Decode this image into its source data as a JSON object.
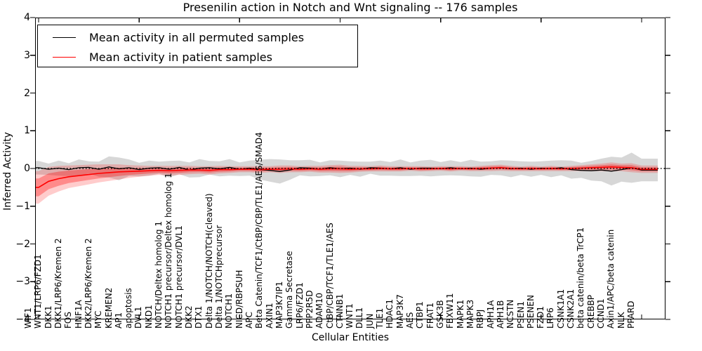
{
  "chart_data": {
    "type": "line",
    "title": "Presenilin action in Notch and Wnt signaling -- 176 samples",
    "xlabel": "Cellular Entities",
    "ylabel": "Inferred Activity",
    "ylim": [
      -4,
      4
    ],
    "yticks": [
      4,
      3,
      2,
      1,
      0,
      -1,
      -2,
      -3,
      -4
    ],
    "xtick_major_indices": [
      0,
      10,
      20,
      30,
      40,
      50,
      60
    ],
    "grid": false,
    "legend_position": "upper left",
    "zero_line": {
      "value": 0,
      "style": "dotted",
      "color": "#000000"
    },
    "categories": [
      "WIF1",
      "WNT1/LRP6/FZD1",
      "DKK1",
      "DKK1/LRP6/Kremen 2",
      "FOS",
      "HNF1A",
      "DKK2/LRP6/Kremen 2",
      "MYC",
      "KREMEN2",
      "AP1",
      "apoptosis",
      "DVL1",
      "NKD1",
      "NOTCH/Deltex homolog 1",
      "NOTCH1 precursor/Deltex homolog 1",
      "NOTCH1 precursor/DVL1",
      "DKK2",
      "DTX1",
      "Delta 1/NOTCH/NOTCH(cleaved)",
      "Delta 1/NOTCHprecursor",
      "NOTCH1",
      "NICD/RBPSUH",
      "APC",
      "Beta Catenin/TCF1/CtBP/CBP/TLE1/AES/SMAD4",
      "AXIN1",
      "MAP3K7IP1",
      "Gamma Secretase",
      "LRP6/FZD1",
      "PPP2R5D",
      "ADAM10",
      "CtBP/CBP/TCF1/TLE1/AES",
      "CTNNB1",
      "WNT1",
      "DLL1",
      "JUN",
      "TLE1",
      "HDAC1",
      "MAP3K7",
      "AES",
      "CTBP1",
      "FRAT1",
      "GSK3B",
      "FBXW11",
      "MAPK1",
      "MAPK3",
      "RBPJ",
      "APH1A",
      "APH1B",
      "NCSTN",
      "PSEN1",
      "PSENEN",
      "FZD1",
      "LRP6",
      "CSNK1A1",
      "CSNK2A1",
      "beta catenin/beta TrCP1",
      "CREBBP",
      "CCND1",
      "Axin1/APC/beta catenin",
      "NLK",
      "PPARD"
    ],
    "series": [
      {
        "name": "Mean activity in all permuted samples",
        "color": "#000000",
        "band_color": "rgba(130,130,130,0.32)",
        "values": [
          0.02,
          -0.02,
          0.01,
          -0.03,
          0.02,
          0.03,
          -0.02,
          0.04,
          -0.01,
          0.02,
          -0.03,
          0.01,
          0.02,
          -0.02,
          0.03,
          -0.04,
          0.01,
          0.02,
          -0.01,
          0.03,
          -0.02,
          0.01,
          -0.03,
          -0.05,
          -0.08,
          -0.04,
          0.02,
          0.01,
          -0.02,
          0.02,
          -0.01,
          0.01,
          -0.02,
          0.02,
          0.01,
          -0.01,
          0.02,
          -0.02,
          0.01,
          0.01,
          -0.01,
          0.02,
          -0.01,
          0.01,
          -0.02,
          0.01,
          0.02,
          -0.01,
          0.01,
          -0.02,
          0.01,
          -0.01,
          0.02,
          -0.03,
          -0.05,
          -0.06,
          -0.04,
          -0.07,
          -0.03,
          0.02,
          -0.04
        ],
        "band_halfwidth": [
          0.18,
          0.15,
          0.2,
          0.17,
          0.22,
          0.16,
          0.2,
          0.28,
          0.3,
          0.22,
          0.18,
          0.2,
          0.16,
          0.22,
          0.18,
          0.2,
          0.24,
          0.18,
          0.2,
          0.22,
          0.18,
          0.2,
          0.26,
          0.3,
          0.32,
          0.26,
          0.2,
          0.22,
          0.18,
          0.2,
          0.22,
          0.18,
          0.2,
          0.16,
          0.2,
          0.18,
          0.22,
          0.18,
          0.2,
          0.22,
          0.18,
          0.2,
          0.18,
          0.22,
          0.2,
          0.18,
          0.2,
          0.22,
          0.18,
          0.2,
          0.18,
          0.22,
          0.2,
          0.24,
          0.2,
          0.26,
          0.3,
          0.38,
          0.32,
          0.4,
          0.3
        ]
      },
      {
        "name": "Mean activity in patient samples",
        "color": "#ff0000",
        "band_color": "rgba(255,0,0,0.20)",
        "values": [
          -0.5,
          -0.34,
          -0.27,
          -0.22,
          -0.19,
          -0.16,
          -0.13,
          -0.11,
          -0.09,
          -0.08,
          -0.07,
          -0.06,
          -0.05,
          -0.06,
          -0.05,
          -0.04,
          -0.04,
          -0.05,
          -0.03,
          -0.03,
          -0.02,
          -0.02,
          -0.03,
          -0.02,
          -0.02,
          -0.01,
          -0.02,
          -0.01,
          -0.02,
          -0.01,
          -0.01,
          -0.02,
          -0.01,
          -0.01,
          0.0,
          -0.01,
          -0.01,
          0.0,
          -0.01,
          -0.01,
          0.0,
          -0.01,
          0.0,
          -0.01,
          0.0,
          0.01,
          0.02,
          0.0,
          -0.01,
          0.0,
          -0.01,
          0.0,
          -0.01,
          0.0,
          0.01,
          0.02,
          0.03,
          0.04,
          0.03,
          0.02,
          -0.02
        ],
        "band_halfwidth": [
          0.43,
          0.38,
          0.34,
          0.3,
          0.28,
          0.26,
          0.24,
          0.22,
          0.2,
          0.17,
          0.15,
          0.13,
          0.12,
          0.13,
          0.12,
          0.11,
          0.1,
          0.11,
          0.1,
          0.09,
          0.08,
          0.08,
          0.09,
          0.08,
          0.1,
          0.09,
          0.08,
          0.08,
          0.09,
          0.1,
          0.11,
          0.09,
          0.08,
          0.07,
          0.08,
          0.07,
          0.07,
          0.06,
          0.07,
          0.06,
          0.06,
          0.07,
          0.06,
          0.06,
          0.07,
          0.08,
          0.08,
          0.07,
          0.06,
          0.07,
          0.06,
          0.07,
          0.06,
          0.07,
          0.08,
          0.09,
          0.1,
          0.12,
          0.1,
          0.12,
          0.1
        ]
      }
    ]
  }
}
